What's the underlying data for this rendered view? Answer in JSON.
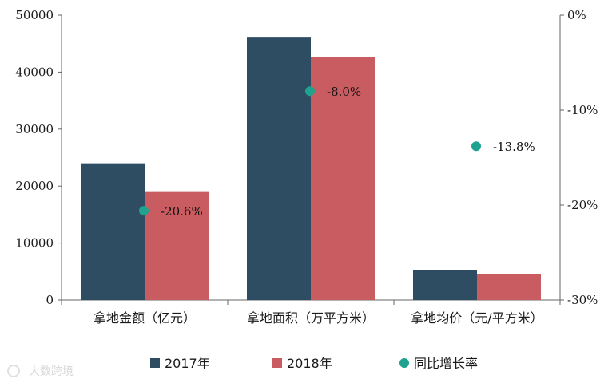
{
  "chart_data": {
    "type": "bar",
    "categories": [
      "拿地金额（亿元）",
      "拿地面积（万平方米）",
      "拿地均价（元/平方米）"
    ],
    "series": [
      {
        "name": "2017年",
        "type": "bar",
        "axis": "left",
        "color": "#2e4d62",
        "values": [
          24000,
          46200,
          5200
        ]
      },
      {
        "name": "2018年",
        "type": "bar",
        "axis": "left",
        "color": "#c95c60",
        "values": [
          19100,
          42600,
          4500
        ]
      },
      {
        "name": "同比增长率",
        "type": "scatter",
        "axis": "right",
        "color": "#1fa38e",
        "values": [
          -20.6,
          -8.0,
          -13.8
        ],
        "labels": [
          "-20.6%",
          "-8.0%",
          "-13.8%"
        ]
      }
    ],
    "y_left": {
      "ylim": [
        0,
        50000
      ],
      "ticks": [
        0,
        10000,
        20000,
        30000,
        40000,
        50000
      ],
      "tick_labels": [
        "0",
        "10000",
        "20000",
        "30000",
        "40000",
        "50000"
      ]
    },
    "y_right": {
      "ylim": [
        -30,
        0
      ],
      "ticks": [
        0,
        -10,
        -20,
        -30
      ],
      "tick_labels": [
        "0%",
        "-10%",
        "-20%",
        "-30%"
      ]
    },
    "grid": false,
    "legend": {
      "position": "bottom"
    }
  },
  "watermark": {
    "text": "大数跨境"
  }
}
